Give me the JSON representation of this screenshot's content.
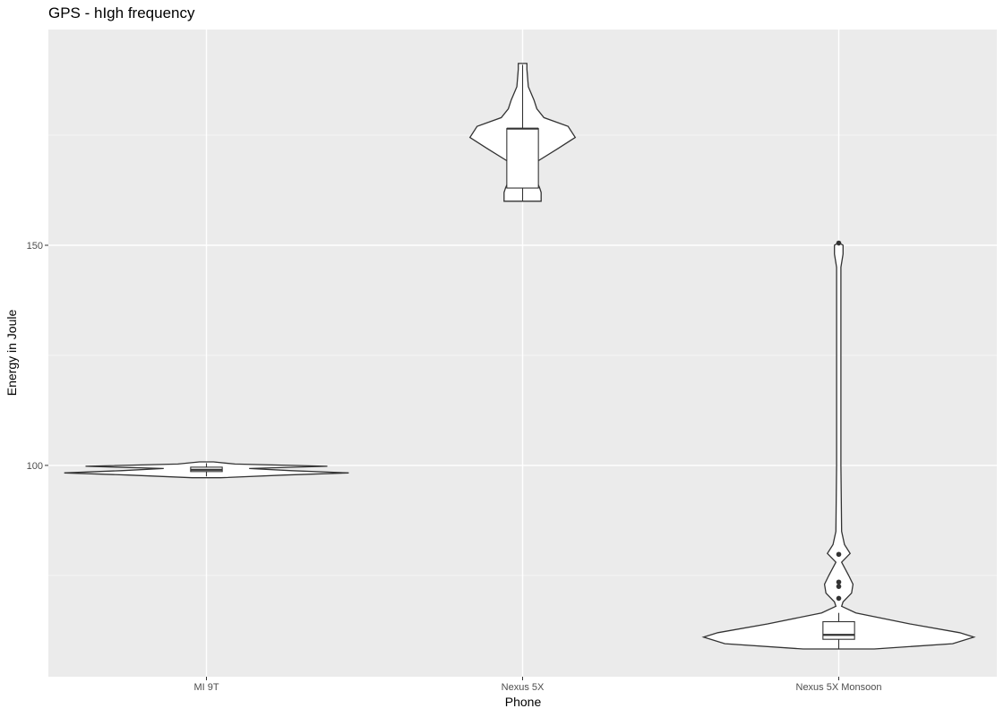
{
  "chart_data": {
    "type": "violin",
    "title": "GPS - hIgh frequency",
    "xlabel": "Phone",
    "ylabel": "Energy in Joule",
    "categories": [
      "MI 9T",
      "Nexus 5X",
      "Nexus 5X Monsoon"
    ],
    "ylim": [
      52,
      199
    ],
    "yticks": [
      100,
      150
    ],
    "grid": true,
    "colors": {
      "panel": "#ebebeb",
      "grid_major": "#ffffff",
      "grid_minor": "#f5f5f5",
      "stroke": "#333333",
      "fill": "#ffffff"
    },
    "series": [
      {
        "category": "MI 9T",
        "violin": [
          [
            97.2,
            0.1
          ],
          [
            97.8,
            0.55
          ],
          [
            98.3,
            1.0
          ],
          [
            98.8,
            0.6
          ],
          [
            99.3,
            0.3
          ],
          [
            99.8,
            0.85
          ],
          [
            100.3,
            0.2
          ],
          [
            100.8,
            0.05
          ]
        ],
        "box": {
          "min": 97.5,
          "q1": 98.6,
          "median": 99.0,
          "q3": 99.6,
          "max": 100.5
        },
        "outliers": []
      },
      {
        "category": "Nexus 5X",
        "violin": [
          [
            160.0,
            0.13
          ],
          [
            162,
            0.13
          ],
          [
            163,
            0.12
          ],
          [
            166,
            0.08
          ],
          [
            169,
            0.1
          ],
          [
            172,
            0.25
          ],
          [
            174.5,
            0.37
          ],
          [
            177,
            0.32
          ],
          [
            179,
            0.15
          ],
          [
            181,
            0.1
          ],
          [
            183,
            0.08
          ],
          [
            186,
            0.04
          ],
          [
            190,
            0.03
          ],
          [
            191.3,
            0.03
          ]
        ],
        "box": {
          "min": 160.0,
          "q1": 163.0,
          "median": 176.5,
          "q3": 176.5,
          "max": 191.0
        },
        "outliers": []
      },
      {
        "category": "Nexus 5X Monsoon",
        "violin": [
          [
            58.3,
            0.25
          ],
          [
            59.5,
            0.8
          ],
          [
            61,
            0.95
          ],
          [
            62,
            0.85
          ],
          [
            64,
            0.5
          ],
          [
            66.5,
            0.12
          ],
          [
            68,
            0.02
          ],
          [
            69,
            0.03
          ],
          [
            71,
            0.09
          ],
          [
            73,
            0.1
          ],
          [
            75,
            0.07
          ],
          [
            78,
            0.02
          ],
          [
            80,
            0.08
          ],
          [
            82,
            0.04
          ],
          [
            85,
            0.02
          ],
          [
            100,
            0.015
          ],
          [
            130,
            0.015
          ],
          [
            145,
            0.015
          ],
          [
            148,
            0.03
          ],
          [
            150,
            0.03
          ],
          [
            150.6,
            0.0
          ]
        ],
        "box": {
          "min": 58.3,
          "q1": 60.5,
          "median": 61.5,
          "q3": 64.5,
          "max": 66.5
        },
        "outliers": [
          69.8,
          72.5,
          73.5,
          79.8,
          150.5
        ]
      }
    ]
  }
}
